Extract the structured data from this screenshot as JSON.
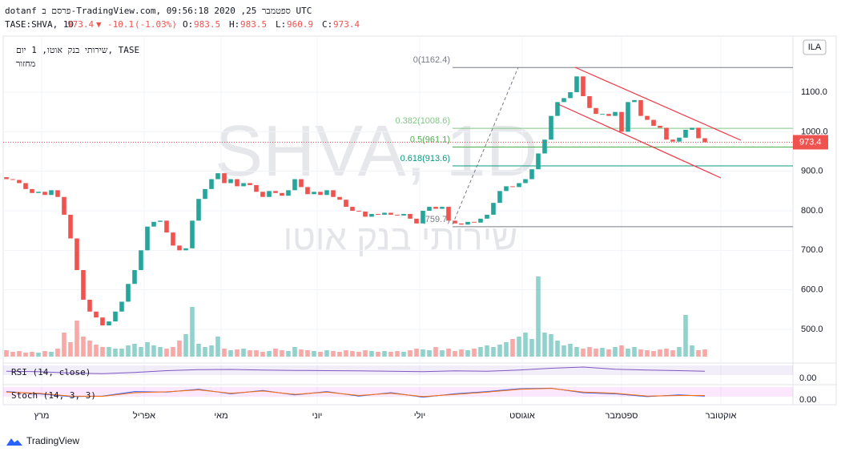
{
  "chart_data": {
    "type": "candlestick",
    "source_note": "dotanf פרסם ב-TradingView.com, ספטמבר 25, 2020 09:56:18 UTC",
    "symbol_info": "TASE:SHVA, 1D",
    "last": 973.4,
    "change": -10.1,
    "change_pct": "(-1.03%)",
    "ohlc_names": [
      "O:",
      "H:",
      "L:",
      "C:"
    ],
    "ohlc_values": [
      983.5,
      983.5,
      960.9,
      973.4
    ],
    "legend_title": "שירותי בנק אוטו, 1 יום, TASE",
    "volume_label": "מחזור",
    "watermark": "SHVA, 1D",
    "watermark_name": "שירותי בנק אוטו",
    "currency": "ILA",
    "brand": "TradingView",
    "up_color": "#26a69a",
    "down_color": "#ef5350",
    "ylim": [
      431,
      1242
    ],
    "yticks": [
      {
        "value": 500,
        "label": "500.0"
      },
      {
        "value": 600,
        "label": "600.0"
      },
      {
        "value": 700,
        "label": "700.0"
      },
      {
        "value": 800,
        "label": "800.0"
      },
      {
        "value": 900,
        "label": "900.0"
      },
      {
        "value": 1000,
        "label": "1000.0"
      },
      {
        "value": 1100,
        "label": "1100.0"
      }
    ],
    "xlim": [
      -1,
      123
    ],
    "xticks": [
      {
        "value": 5.5,
        "label": "מרץ"
      },
      {
        "value": 21.5,
        "label": "אפריל"
      },
      {
        "value": 33.5,
        "label": "מאי"
      },
      {
        "value": 48.5,
        "label": "יוני"
      },
      {
        "value": 64.5,
        "label": "יולי"
      },
      {
        "value": 80.5,
        "label": "אוגוסט"
      },
      {
        "value": 96,
        "label": "ספטמבר"
      },
      {
        "value": 111.5,
        "label": "אוקטובר"
      }
    ],
    "open": [
      885,
      880,
      878,
      870,
      855,
      845,
      848,
      840,
      852,
      835,
      790,
      730,
      650,
      575,
      545,
      530,
      510,
      520,
      545,
      570,
      615,
      650,
      700,
      760,
      772,
      775,
      745,
      712,
      700,
      705,
      775,
      830,
      855,
      880,
      895,
      870,
      880,
      862,
      870,
      865,
      848,
      835,
      850,
      845,
      838,
      852,
      880,
      860,
      842,
      848,
      840,
      852,
      835,
      828,
      810,
      800,
      798,
      785,
      792,
      790,
      795,
      790,
      788,
      792,
      780,
      768,
      800,
      810,
      805,
      810,
      775,
      768,
      765,
      772,
      770,
      780,
      790,
      820,
      850,
      862,
      860,
      870,
      880,
      905,
      945,
      980,
      1040,
      1075,
      1085,
      1100,
      1140,
      1090,
      1060,
      1045,
      1045,
      1040,
      1050,
      1000,
      1075,
      1080,
      1040,
      1030,
      1015,
      1010,
      980,
      975,
      985,
      1005,
      1010,
      983.5
    ],
    "close": [
      880,
      878,
      870,
      855,
      845,
      848,
      840,
      852,
      835,
      790,
      730,
      650,
      575,
      545,
      530,
      510,
      520,
      545,
      570,
      615,
      650,
      700,
      760,
      772,
      775,
      745,
      712,
      700,
      705,
      775,
      830,
      855,
      880,
      895,
      870,
      880,
      862,
      870,
      865,
      848,
      835,
      850,
      845,
      838,
      852,
      880,
      860,
      842,
      848,
      840,
      852,
      835,
      828,
      810,
      800,
      798,
      785,
      792,
      790,
      795,
      790,
      788,
      792,
      780,
      768,
      800,
      810,
      805,
      810,
      775,
      768,
      765,
      772,
      770,
      780,
      790,
      820,
      850,
      862,
      860,
      870,
      880,
      905,
      945,
      980,
      1040,
      1075,
      1085,
      1100,
      1140,
      1090,
      1060,
      1045,
      1045,
      1040,
      1050,
      1000,
      1075,
      1080,
      1040,
      1030,
      1015,
      1010,
      980,
      975,
      985,
      1005,
      1010,
      983.5,
      973.4
    ],
    "volume": [
      8,
      6,
      7,
      5,
      6,
      5,
      7,
      6,
      10,
      30,
      18,
      45,
      25,
      20,
      15,
      12,
      12,
      10,
      10,
      14,
      16,
      12,
      18,
      14,
      12,
      10,
      12,
      20,
      28,
      62,
      16,
      12,
      14,
      25,
      10,
      8,
      9,
      10,
      8,
      8,
      6,
      7,
      10,
      8,
      7,
      12,
      9,
      8,
      7,
      6,
      8,
      7,
      6,
      8,
      7,
      6,
      8,
      7,
      6,
      7,
      6,
      7,
      6,
      8,
      10,
      9,
      8,
      12,
      8,
      10,
      7,
      9,
      8,
      10,
      12,
      14,
      12,
      15,
      18,
      22,
      25,
      30,
      22,
      100,
      30,
      28,
      20,
      14,
      16,
      12,
      10,
      12,
      10,
      11,
      9,
      12,
      14,
      10,
      12,
      9,
      8,
      7,
      9,
      10,
      8,
      12,
      52,
      14,
      8,
      9
    ],
    "vlim": [
      0,
      100
    ],
    "fib_levels": [
      {
        "value": 1162.4,
        "label": "0(1162.4)"
      },
      {
        "value": 1008.6,
        "label": "0.382(1008.6)"
      },
      {
        "value": 961.1,
        "label": "0.5(961.1)"
      },
      {
        "value": 913.6,
        "label": "0.618(913.6)"
      },
      {
        "value": 759.7,
        "label": "(759.7)"
      }
    ],
    "fib_colors": [
      "#787b86",
      "#81c784",
      "#4caf50",
      "#089981",
      "#787b86"
    ],
    "rsi": {
      "title": "RSI (14, close)",
      "color": "#7e57c2",
      "ylim": [
        0,
        100
      ],
      "yticks": [
        {
          "value": 0,
          "label": "0.00"
        }
      ],
      "x": [
        0,
        5,
        10,
        15,
        20,
        25,
        30,
        35,
        40,
        45,
        50,
        55,
        60,
        65,
        70,
        75,
        80,
        85,
        90,
        95,
        100,
        105,
        109
      ],
      "values": [
        45,
        42,
        30,
        25,
        35,
        50,
        58,
        60,
        55,
        52,
        50,
        48,
        45,
        42,
        48,
        45,
        55,
        70,
        80,
        62,
        55,
        50,
        45
      ]
    },
    "stoch": {
      "title": "Stoch (14, 3, 3)",
      "ylim": [
        0,
        100
      ],
      "yticks": [
        {
          "value": 0,
          "label": "0.00"
        }
      ],
      "x": [
        0,
        5,
        10,
        15,
        20,
        25,
        30,
        35,
        40,
        45,
        50,
        55,
        60,
        65,
        70,
        75,
        80,
        85,
        90,
        95,
        100,
        105,
        109
      ],
      "series": [
        {
          "color": "#2962ff",
          "values": [
            60,
            40,
            15,
            20,
            60,
            55,
            80,
            40,
            70,
            30,
            60,
            20,
            50,
            10,
            40,
            60,
            85,
            90,
            50,
            40,
            15,
            30,
            20
          ]
        },
        {
          "color": "#ff6d00",
          "values": [
            55,
            45,
            20,
            18,
            50,
            58,
            75,
            45,
            65,
            35,
            55,
            25,
            45,
            15,
            35,
            55,
            80,
            88,
            55,
            45,
            20,
            25,
            25
          ]
        }
      ]
    }
  }
}
